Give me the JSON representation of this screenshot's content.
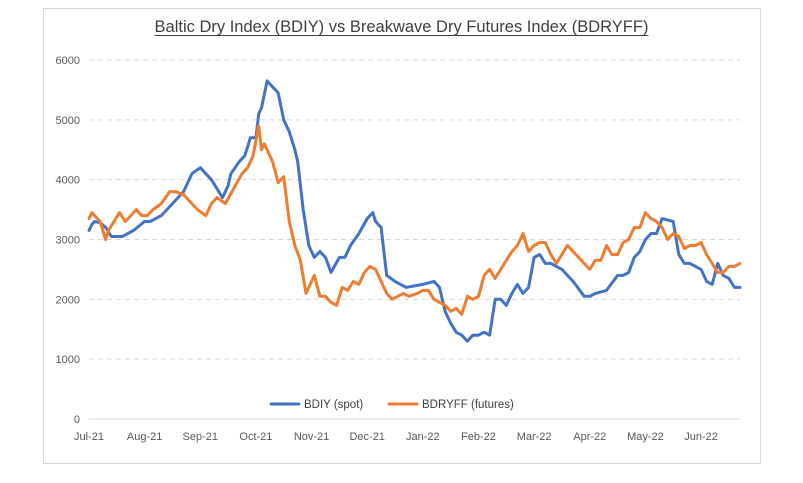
{
  "chart_data": {
    "type": "line",
    "title": "Baltic Dry Index (BDIY) vs Breakwave Dry Futures Index (BDRYFF)",
    "xlabel": "",
    "ylabel": "",
    "ylim": [
      0,
      6000
    ],
    "yticks": [
      "0",
      "1000",
      "2000",
      "3000",
      "4000",
      "5000",
      "6000"
    ],
    "xticks": [
      "Jul-21",
      "Aug-21",
      "Sep-21",
      "Oct-21",
      "Nov-21",
      "Dec-21",
      "Jan-22",
      "Feb-22",
      "Mar-22",
      "Apr-22",
      "May-22",
      "Jun-22"
    ],
    "grid": "horizontal dashed",
    "legend_position": "bottom",
    "series": [
      {
        "name": "BDIY (spot)",
        "color": "#4472c4",
        "x": [
          0,
          0.05,
          0.1,
          0.2,
          0.3,
          0.4,
          0.6,
          0.8,
          1.0,
          1.1,
          1.3,
          1.5,
          1.7,
          1.85,
          2.0,
          2.2,
          2.4,
          2.5,
          2.55,
          2.7,
          2.8,
          2.9,
          3.0,
          3.05,
          3.1,
          3.2,
          3.3,
          3.4,
          3.5,
          3.6,
          3.7,
          3.75,
          3.85,
          3.95,
          4.05,
          4.15,
          4.25,
          4.35,
          4.5,
          4.6,
          4.7,
          4.85,
          5.0,
          5.1,
          5.15,
          5.25,
          5.35,
          5.5,
          5.7,
          6.0,
          6.2,
          6.3,
          6.4,
          6.5,
          6.6,
          6.7,
          6.8,
          6.9,
          7.0,
          7.1,
          7.2,
          7.3,
          7.4,
          7.5,
          7.6,
          7.7,
          7.8,
          7.9,
          8.0,
          8.1,
          8.2,
          8.3,
          8.5,
          8.7,
          8.9,
          9.0,
          9.1,
          9.3,
          9.5,
          9.6,
          9.7,
          9.8,
          9.9,
          10.0,
          10.1,
          10.2,
          10.3,
          10.5,
          10.6,
          10.7,
          10.8,
          10.9,
          11.0,
          11.1,
          11.2,
          11.3,
          11.4,
          11.5,
          11.6,
          11.7
        ],
        "values": [
          3150,
          3250,
          3300,
          3280,
          3200,
          3050,
          3050,
          3150,
          3300,
          3300,
          3400,
          3600,
          3800,
          4100,
          4200,
          4000,
          3700,
          3900,
          4100,
          4300,
          4400,
          4700,
          4700,
          5100,
          5200,
          5650,
          5550,
          5450,
          5000,
          4800,
          4500,
          4300,
          3500,
          2900,
          2700,
          2800,
          2700,
          2450,
          2700,
          2700,
          2900,
          3100,
          3350,
          3450,
          3300,
          3200,
          2400,
          2300,
          2200,
          2250,
          2300,
          2200,
          1800,
          1600,
          1450,
          1400,
          1300,
          1400,
          1400,
          1450,
          1400,
          2000,
          2000,
          1900,
          2100,
          2250,
          2100,
          2200,
          2700,
          2750,
          2600,
          2600,
          2500,
          2300,
          2050,
          2050,
          2100,
          2150,
          2400,
          2400,
          2450,
          2700,
          2800,
          3000,
          3100,
          3100,
          3350,
          3300,
          2750,
          2600,
          2600,
          2550,
          2500,
          2300,
          2250,
          2600,
          2400,
          2350,
          2200,
          2200
        ]
      },
      {
        "name": "BDRYFF (futures)",
        "color": "#ed7d31",
        "x": [
          0,
          0.05,
          0.1,
          0.2,
          0.3,
          0.35,
          0.45,
          0.55,
          0.65,
          0.75,
          0.85,
          0.95,
          1.05,
          1.15,
          1.3,
          1.45,
          1.55,
          1.7,
          1.85,
          1.95,
          2.1,
          2.2,
          2.3,
          2.45,
          2.6,
          2.75,
          2.85,
          2.95,
          3.05,
          3.1,
          3.15,
          3.2,
          3.3,
          3.4,
          3.5,
          3.6,
          3.7,
          3.8,
          3.9,
          4.0,
          4.05,
          4.15,
          4.25,
          4.35,
          4.45,
          4.55,
          4.65,
          4.75,
          4.85,
          4.95,
          5.05,
          5.15,
          5.25,
          5.35,
          5.45,
          5.55,
          5.65,
          5.75,
          5.9,
          6.0,
          6.1,
          6.2,
          6.3,
          6.4,
          6.5,
          6.6,
          6.7,
          6.8,
          6.9,
          7.0,
          7.1,
          7.2,
          7.3,
          7.4,
          7.5,
          7.6,
          7.7,
          7.8,
          7.9,
          8.0,
          8.1,
          8.2,
          8.3,
          8.4,
          8.5,
          8.6,
          8.7,
          8.8,
          8.9,
          9.0,
          9.1,
          9.2,
          9.3,
          9.4,
          9.5,
          9.6,
          9.7,
          9.8,
          9.9,
          10.0,
          10.1,
          10.2,
          10.3,
          10.4,
          10.5,
          10.6,
          10.7,
          10.8,
          10.9,
          11.0,
          11.1,
          11.2,
          11.3,
          11.4,
          11.5,
          11.6,
          11.7
        ],
        "values": [
          3350,
          3450,
          3400,
          3300,
          3000,
          3150,
          3300,
          3450,
          3300,
          3400,
          3500,
          3400,
          3400,
          3500,
          3600,
          3800,
          3800,
          3750,
          3600,
          3500,
          3400,
          3600,
          3700,
          3600,
          3850,
          4100,
          4200,
          4400,
          4900,
          4500,
          4600,
          4500,
          4300,
          3950,
          4050,
          3300,
          2900,
          2650,
          2100,
          2300,
          2400,
          2050,
          2050,
          1950,
          1900,
          2200,
          2150,
          2300,
          2250,
          2450,
          2550,
          2500,
          2300,
          2100,
          2000,
          2050,
          2100,
          2050,
          2100,
          2150,
          2150,
          2000,
          1950,
          1900,
          1800,
          1850,
          1750,
          2050,
          2000,
          2050,
          2400,
          2500,
          2350,
          2500,
          2650,
          2800,
          2900,
          3100,
          2800,
          2900,
          2950,
          2950,
          2750,
          2600,
          2750,
          2900,
          2800,
          2700,
          2600,
          2500,
          2650,
          2650,
          2900,
          2750,
          2750,
          2950,
          3000,
          3200,
          3200,
          3450,
          3350,
          3300,
          3200,
          3000,
          3100,
          3050,
          2850,
          2900,
          2900,
          2950,
          2750,
          2600,
          2450,
          2450,
          2550,
          2550,
          2600
        ]
      }
    ]
  }
}
